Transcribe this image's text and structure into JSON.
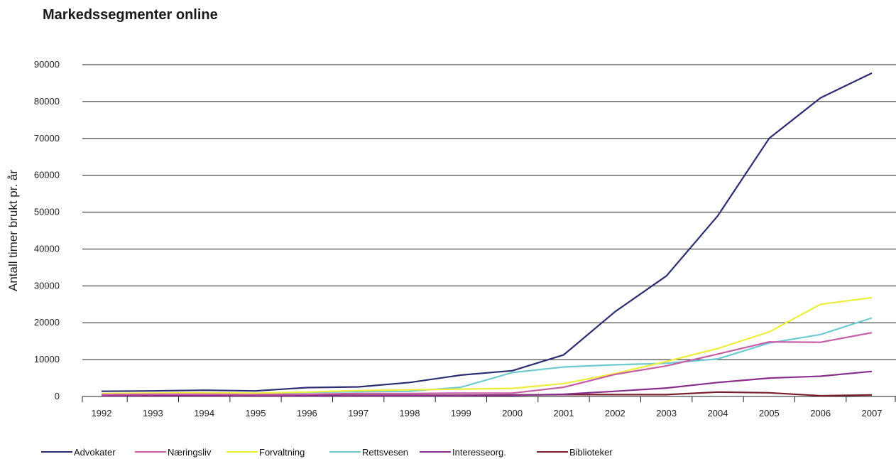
{
  "chart_data": {
    "type": "line",
    "title": "Markedssegmenter online",
    "xlabel": "",
    "ylabel": "Antall timer brukt pr. år",
    "categories": [
      "1992",
      "1993",
      "1994",
      "1995",
      "1996",
      "1997",
      "1998",
      "1999",
      "2000",
      "2001",
      "2002",
      "2003",
      "2004",
      "2005",
      "2006",
      "2007"
    ],
    "ylim": [
      0,
      90000
    ],
    "yticks": [
      0,
      10000,
      20000,
      30000,
      40000,
      50000,
      60000,
      70000,
      80000,
      90000
    ],
    "grid": true,
    "legend_position": "bottom-left",
    "series": [
      {
        "name": "Advokater",
        "color": "#2b2d72",
        "values": [
          1400,
          1500,
          1700,
          1500,
          2400,
          2600,
          3800,
          5800,
          7000,
          11300,
          23000,
          32700,
          49000,
          70000,
          81000,
          87700
        ]
      },
      {
        "name": "Næringsliv",
        "color": "#c65da6",
        "values": [
          500,
          600,
          600,
          500,
          600,
          800,
          800,
          900,
          900,
          2500,
          6000,
          8300,
          11500,
          14800,
          14700,
          17300
        ]
      },
      {
        "name": "Forvaltning",
        "color": "#eeee3a",
        "values": [
          800,
          900,
          1000,
          900,
          1200,
          1600,
          1800,
          2000,
          2200,
          3500,
          6200,
          9500,
          13000,
          17500,
          25000,
          26800
        ]
      },
      {
        "name": "Rettsvesen",
        "color": "#6ec9d3",
        "values": [
          700,
          800,
          900,
          800,
          1100,
          1300,
          1400,
          2500,
          6500,
          8000,
          8600,
          9000,
          10200,
          14500,
          16800,
          21300
        ]
      },
      {
        "name": "Interesseorg.",
        "color": "#8a2f8c",
        "values": [
          200,
          200,
          200,
          200,
          200,
          200,
          200,
          200,
          300,
          600,
          1400,
          2300,
          3800,
          5000,
          5500,
          6800
        ]
      },
      {
        "name": "Biblioteker",
        "color": "#7a1f2b",
        "values": [
          300,
          300,
          300,
          300,
          300,
          300,
          300,
          300,
          400,
          500,
          500,
          500,
          1200,
          1000,
          200,
          400
        ]
      }
    ]
  }
}
